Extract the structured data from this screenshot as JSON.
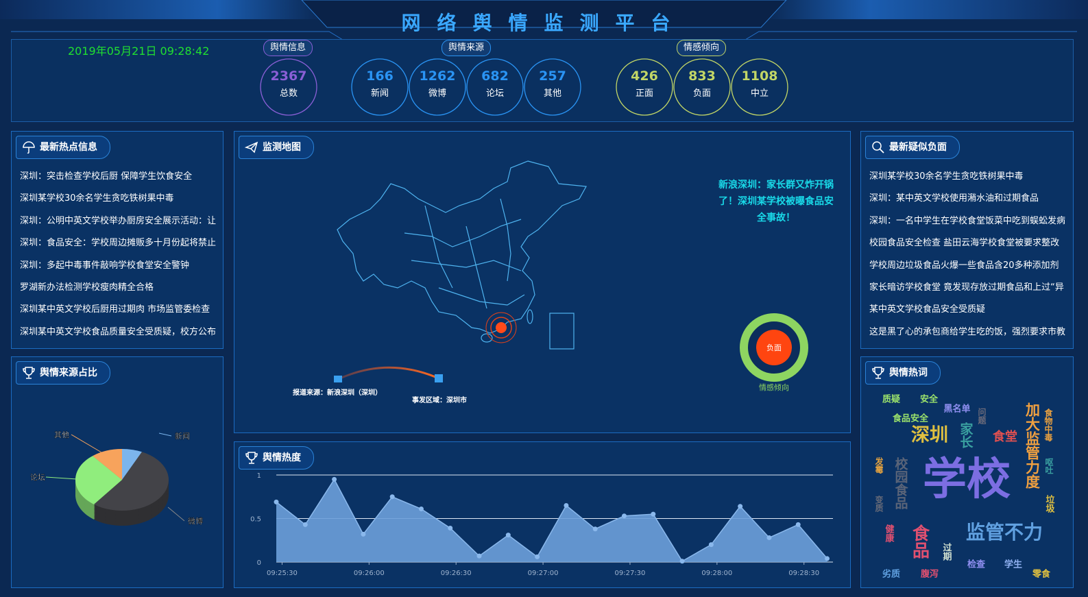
{
  "header": {
    "title": "网络舆情监测平台",
    "datetime": "2019年05月21日 09:28:42"
  },
  "stats": {
    "groups": [
      {
        "label": "舆情信息",
        "color": "#8a5fd6",
        "items": [
          {
            "value": 2367,
            "label": "总数"
          }
        ]
      },
      {
        "label": "舆情来源",
        "color": "#2a94f4",
        "items": [
          {
            "value": 166,
            "label": "新闻"
          },
          {
            "value": 1262,
            "label": "微博"
          },
          {
            "value": 682,
            "label": "论坛"
          },
          {
            "value": 257,
            "label": "其他"
          }
        ]
      },
      {
        "label": "情感倾向",
        "color": "#c2d666",
        "items": [
          {
            "value": 426,
            "label": "正面"
          },
          {
            "value": 833,
            "label": "负面"
          },
          {
            "value": 1108,
            "label": "中立"
          }
        ]
      }
    ]
  },
  "hot_news": {
    "title": "最新热点信息",
    "items": [
      "深圳：突击检查学校后厨 保障学生饮食安全",
      "深圳某学校30余名学生贪吃铁树果中毒",
      "深圳：公明中英文学校举办厨房安全展示活动：让",
      "深圳：食品安全：学校周边摊贩多十月份起将禁止",
      "深圳：多起中毒事件敲响学校食堂安全警钟",
      "罗湖新办法检测学校瘦肉精全合格",
      "深圳某中英文学校后厨用过期肉 市场监管委检查",
      "深圳某中英文学校食品质量安全受质疑，校方公布"
    ]
  },
  "map": {
    "title": "监测地图",
    "headline": "新浪深圳：家长群又炸开锅了！深圳某学校被曝食品安全事故！",
    "source_label": "报道来源：新浪深圳（深圳）",
    "area_label": "事发区域：深圳市",
    "gauge_label": "负面",
    "gauge_caption": "情感倾向"
  },
  "negative_news": {
    "title": "最新疑似负面",
    "items": [
      "深圳某学校30余名学生贪吃铁树果中毒",
      "深圳：某中英文学校使用潲水油和过期食品",
      "深圳：一名中学生在学校食堂饭菜中吃到蜈蚣发病",
      "校园食品安全检查 盐田云海学校食堂被要求整改",
      "学校周边垃圾食品火爆一些食品含20多种添加剂",
      "家长暗访学校食堂 竟发现存放过期食品和上过“异",
      "某中英文学校食品安全受质疑",
      "这是黑了心的承包商给学生吃的饭，强烈要求市教"
    ]
  },
  "source_share": {
    "title": "舆情来源占比",
    "chart": {
      "type": "pie",
      "categories": [
        "新闻",
        "微博",
        "论坛",
        "其他"
      ],
      "values": [
        166,
        1262,
        682,
        257
      ],
      "colors": [
        "#7cb5ec",
        "#434348",
        "#90ed7d",
        "#f7a35c"
      ]
    }
  },
  "heat": {
    "title": "舆情热度",
    "chart": {
      "type": "area",
      "color": "#6b9fd9",
      "x": [
        -2,
        8,
        18,
        28,
        38,
        48,
        58,
        68,
        78,
        88,
        98,
        108,
        118,
        128,
        138,
        148,
        158,
        168,
        178,
        188
      ],
      "values": [
        0.69,
        0.43,
        0.95,
        0.32,
        0.75,
        0.61,
        0.39,
        0.07,
        0.31,
        0.06,
        0.65,
        0.38,
        0.53,
        0.55,
        0.01,
        0.2,
        0.64,
        0.28,
        0.43,
        0.04
      ],
      "xlim": [
        -2,
        190
      ],
      "ylim": [
        0,
        1
      ],
      "yticks": [
        0,
        0.5,
        1
      ],
      "grid": true,
      "xticks": [
        {
          "value": 0,
          "label": "09:25:30"
        },
        {
          "value": 30,
          "label": "09:26:00"
        },
        {
          "value": 60,
          "label": "09:26:30"
        },
        {
          "value": 90,
          "label": "09:27:00"
        },
        {
          "value": 120,
          "label": "09:27:30"
        },
        {
          "value": 150,
          "label": "09:28:00"
        },
        {
          "value": 180,
          "label": "09:28:30"
        }
      ]
    }
  },
  "word_cloud": {
    "title": "舆情热词",
    "words": [
      "质疑",
      "安全",
      "黑名单",
      "问题",
      "食物中毒",
      "加大监管力度",
      "食品安全",
      "深圳",
      "家长",
      "食堂",
      "发霉",
      "校园食品",
      "学校",
      "呕吐",
      "垃圾",
      "变质",
      "健康",
      "食品",
      "过期",
      "监管不力",
      "检查",
      "学生",
      "劣质",
      "腹泻",
      "零食"
    ]
  }
}
